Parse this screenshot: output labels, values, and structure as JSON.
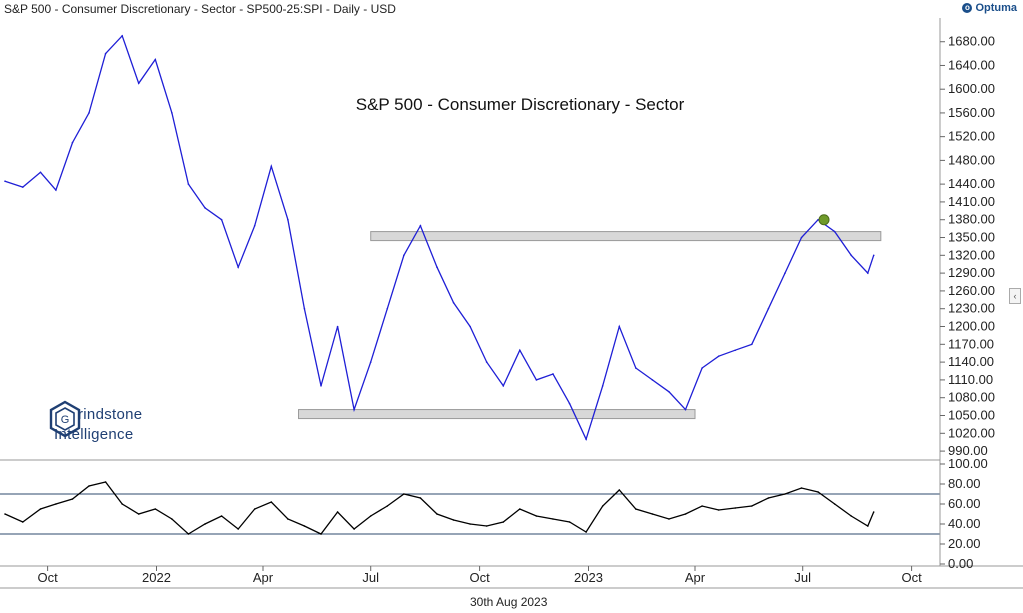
{
  "header": {
    "title": "S&P 500 - Consumer Discretionary - Sector - SP500-25:SPI - Daily - USD",
    "brand": "Optuma",
    "brand_icon": "optuma-logo-icon"
  },
  "watermark": {
    "line1": "rindstone",
    "line2": "Intelligence",
    "mark": "G"
  },
  "footer": {
    "date": "30th Aug 2023"
  },
  "collapse_button": {
    "label": "‹"
  },
  "colors": {
    "price_line": "#1f1fd6",
    "rsi_line": "#000000",
    "band_fill": "#d8d8d8",
    "marker": "#6f9a2a"
  },
  "chart_data": [
    {
      "type": "line",
      "title": "S&P 500 - Consumer Discretionary - Sector",
      "yticks": [
        990.0,
        1020.0,
        1050.0,
        1080.0,
        1110.0,
        1140.0,
        1170.0,
        1200.0,
        1230.0,
        1260.0,
        1290.0,
        1320.0,
        1350.0,
        1380.0,
        1410.0,
        1440.0,
        1480.0,
        1520.0,
        1560.0,
        1600.0,
        1640.0,
        1680.0
      ],
      "ytick_labels": [
        "990.00",
        "1020.00",
        "1050.00",
        "1080.00",
        "1110.00",
        "1140.00",
        "1170.00",
        "1200.00",
        "1230.00",
        "1260.00",
        "1290.00",
        "1320.00",
        "1350.00",
        "1380.00",
        "1410.00",
        "1440.00",
        "1480.00",
        "1520.00",
        "1560.00",
        "1600.00",
        "1640.00",
        "1680.00"
      ],
      "xtick_labels": [
        "Oct",
        "2022",
        "Apr",
        "Jul",
        "Oct",
        "2023",
        "Apr",
        "Jul",
        "Oct"
      ],
      "x": [
        "2021-08-26",
        "2021-09-10",
        "2021-09-25",
        "2021-10-08",
        "2021-10-22",
        "2021-11-05",
        "2021-11-19",
        "2021-12-03",
        "2021-12-17",
        "2021-12-31",
        "2022-01-14",
        "2022-01-28",
        "2022-02-11",
        "2022-02-25",
        "2022-03-11",
        "2022-03-25",
        "2022-04-08",
        "2022-04-22",
        "2022-05-06",
        "2022-05-20",
        "2022-06-03",
        "2022-06-17",
        "2022-07-01",
        "2022-07-15",
        "2022-07-29",
        "2022-08-12",
        "2022-08-26",
        "2022-09-09",
        "2022-09-23",
        "2022-10-07",
        "2022-10-21",
        "2022-11-04",
        "2022-11-18",
        "2022-12-02",
        "2022-12-16",
        "2022-12-30",
        "2023-01-13",
        "2023-01-27",
        "2023-02-10",
        "2023-02-24",
        "2023-03-10",
        "2023-03-24",
        "2023-04-07",
        "2023-04-21",
        "2023-05-05",
        "2023-05-19",
        "2023-06-02",
        "2023-06-16",
        "2023-06-30",
        "2023-07-14",
        "2023-07-28",
        "2023-08-11",
        "2023-08-25",
        "2023-08-30"
      ],
      "y": [
        1445,
        1435,
        1460,
        1430,
        1510,
        1560,
        1660,
        1690,
        1610,
        1650,
        1560,
        1440,
        1400,
        1380,
        1300,
        1370,
        1470,
        1380,
        1230,
        1100,
        1200,
        1060,
        1140,
        1230,
        1320,
        1370,
        1300,
        1240,
        1200,
        1140,
        1100,
        1160,
        1110,
        1120,
        1070,
        1010,
        1100,
        1200,
        1130,
        1110,
        1090,
        1060,
        1130,
        1150,
        1160,
        1170,
        1230,
        1290,
        1350,
        1380,
        1360,
        1320,
        1290,
        1320
      ],
      "bands": [
        {
          "from": 1350,
          "to": 1360,
          "start": "2022-07-01",
          "end": "2023-09-05"
        },
        {
          "from": 1050,
          "to": 1060,
          "start": "2022-05-01",
          "end": "2023-04-01"
        }
      ],
      "marker": {
        "x": "2023-07-19",
        "y": 1380
      },
      "ylim": [
        975,
        1720
      ]
    },
    {
      "type": "line",
      "yticks": [
        0,
        20,
        40,
        60,
        80,
        100
      ],
      "ytick_labels": [
        "0.00",
        "20.00",
        "40.00",
        "60.00",
        "80.00",
        "100.00"
      ],
      "hlines": [
        30,
        70
      ],
      "x": [
        "2021-08-26",
        "2021-09-10",
        "2021-09-25",
        "2021-10-08",
        "2021-10-22",
        "2021-11-05",
        "2021-11-19",
        "2021-12-03",
        "2021-12-17",
        "2021-12-31",
        "2022-01-14",
        "2022-01-28",
        "2022-02-11",
        "2022-02-25",
        "2022-03-11",
        "2022-03-25",
        "2022-04-08",
        "2022-04-22",
        "2022-05-06",
        "2022-05-20",
        "2022-06-03",
        "2022-06-17",
        "2022-07-01",
        "2022-07-15",
        "2022-07-29",
        "2022-08-12",
        "2022-08-26",
        "2022-09-09",
        "2022-09-23",
        "2022-10-07",
        "2022-10-21",
        "2022-11-04",
        "2022-11-18",
        "2022-12-02",
        "2022-12-16",
        "2022-12-30",
        "2023-01-13",
        "2023-01-27",
        "2023-02-10",
        "2023-02-24",
        "2023-03-10",
        "2023-03-24",
        "2023-04-07",
        "2023-04-21",
        "2023-05-05",
        "2023-05-19",
        "2023-06-02",
        "2023-06-16",
        "2023-06-30",
        "2023-07-14",
        "2023-07-28",
        "2023-08-11",
        "2023-08-25",
        "2023-08-30"
      ],
      "y": [
        50,
        42,
        55,
        60,
        65,
        78,
        82,
        60,
        50,
        55,
        45,
        30,
        40,
        48,
        35,
        55,
        62,
        45,
        38,
        30,
        52,
        35,
        48,
        58,
        70,
        66,
        50,
        44,
        40,
        38,
        42,
        55,
        48,
        45,
        42,
        32,
        58,
        74,
        55,
        50,
        45,
        50,
        58,
        54,
        56,
        58,
        66,
        70,
        76,
        72,
        60,
        48,
        38,
        52
      ],
      "ylim": [
        0,
        100
      ]
    }
  ]
}
